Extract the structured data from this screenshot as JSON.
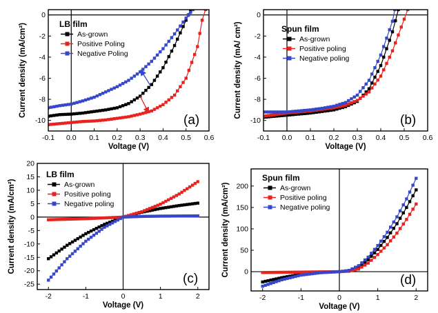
{
  "chart_data": [
    {
      "type": "line",
      "panel_label": "(a)",
      "legend_title": "LB film",
      "xlabel": "Voltage (V)",
      "ylabel": "Current density (mA/cm²)",
      "xlim": [
        -0.1,
        0.6
      ],
      "ylim": [
        -11,
        0.5
      ],
      "x_ticks": [
        -0.1,
        0.0,
        0.1,
        0.2,
        0.3,
        0.4,
        0.5,
        0.6
      ],
      "x_tick_labels": [
        "-0.1",
        "0.0",
        "0.1",
        "0.2",
        "0.3",
        "0.4",
        "0.5",
        "0.6"
      ],
      "y_ticks": [
        -10,
        -8,
        -6,
        -4,
        -2,
        0
      ],
      "y_tick_labels": [
        "-10",
        "-8",
        "-6",
        "-4",
        "-2",
        "0"
      ],
      "zero_lines": true,
      "legend_position": "top-left",
      "series": [
        {
          "name": "As-grown",
          "color": "#000000",
          "marker": "square",
          "points": [
            [
              -0.1,
              -9.6
            ],
            [
              -0.05,
              -9.45
            ],
            [
              0.0,
              -9.4
            ],
            [
              0.05,
              -9.3
            ],
            [
              0.1,
              -9.15
            ],
            [
              0.15,
              -9.0
            ],
            [
              0.2,
              -8.8
            ],
            [
              0.25,
              -8.4
            ],
            [
              0.3,
              -7.7
            ],
            [
              0.35,
              -6.6
            ],
            [
              0.4,
              -5.0
            ],
            [
              0.45,
              -2.9
            ],
            [
              0.5,
              -0.5
            ],
            [
              0.52,
              0.5
            ]
          ]
        },
        {
          "name": "Positive Poling",
          "color": "#e8231f",
          "marker": "square",
          "points": [
            [
              -0.1,
              -10.4
            ],
            [
              -0.05,
              -10.3
            ],
            [
              0.0,
              -10.2
            ],
            [
              0.05,
              -10.1
            ],
            [
              0.1,
              -10.05
            ],
            [
              0.15,
              -9.95
            ],
            [
              0.2,
              -9.8
            ],
            [
              0.25,
              -9.65
            ],
            [
              0.3,
              -9.4
            ],
            [
              0.35,
              -9.1
            ],
            [
              0.4,
              -8.5
            ],
            [
              0.45,
              -7.6
            ],
            [
              0.5,
              -6.0
            ],
            [
              0.55,
              -3.0
            ],
            [
              0.57,
              -0.5
            ],
            [
              0.585,
              0.5
            ]
          ]
        },
        {
          "name": "Negative Poling",
          "color": "#3548c9",
          "marker": "square",
          "points": [
            [
              -0.1,
              -8.8
            ],
            [
              -0.05,
              -8.6
            ],
            [
              0.0,
              -8.45
            ],
            [
              0.05,
              -8.15
            ],
            [
              0.1,
              -7.8
            ],
            [
              0.15,
              -7.3
            ],
            [
              0.2,
              -6.8
            ],
            [
              0.25,
              -6.2
            ],
            [
              0.3,
              -5.4
            ],
            [
              0.35,
              -4.4
            ],
            [
              0.4,
              -3.2
            ],
            [
              0.45,
              -1.8
            ],
            [
              0.5,
              -0.3
            ],
            [
              0.53,
              0.5
            ]
          ]
        }
      ]
    },
    {
      "type": "line",
      "panel_label": "(b)",
      "legend_title": "Spun film",
      "xlabel": "Voltage (V)",
      "ylabel": "Current density (mA/ cm²)",
      "xlim": [
        -0.1,
        0.6
      ],
      "ylim": [
        -11,
        0.5
      ],
      "x_ticks": [
        -0.1,
        0.0,
        0.1,
        0.2,
        0.3,
        0.4,
        0.5,
        0.6
      ],
      "x_tick_labels": [
        "-0.1",
        "0.0",
        "0.1",
        "0.2",
        "0.3",
        "0.4",
        "0.5",
        "0.6"
      ],
      "y_ticks": [
        -10,
        -8,
        -6,
        -4,
        -2,
        0
      ],
      "y_tick_labels": [
        "-10",
        "-8",
        "-6",
        "-4",
        "-2",
        "0"
      ],
      "zero_lines": true,
      "legend_position": "top-left",
      "series": [
        {
          "name": "As-grown",
          "color": "#000000",
          "marker": "square",
          "points": [
            [
              -0.1,
              -9.7
            ],
            [
              0.0,
              -9.5
            ],
            [
              0.05,
              -9.4
            ],
            [
              0.1,
              -9.3
            ],
            [
              0.15,
              -9.15
            ],
            [
              0.2,
              -9.0
            ],
            [
              0.25,
              -8.7
            ],
            [
              0.3,
              -8.2
            ],
            [
              0.35,
              -7.0
            ],
            [
              0.4,
              -4.8
            ],
            [
              0.45,
              -1.6
            ],
            [
              0.475,
              0.5
            ]
          ]
        },
        {
          "name": "Positive poling",
          "color": "#e8231f",
          "marker": "square",
          "points": [
            [
              -0.1,
              -9.6
            ],
            [
              0.0,
              -9.3
            ],
            [
              0.05,
              -9.2
            ],
            [
              0.1,
              -9.1
            ],
            [
              0.15,
              -8.95
            ],
            [
              0.2,
              -8.8
            ],
            [
              0.25,
              -8.55
            ],
            [
              0.3,
              -8.1
            ],
            [
              0.35,
              -7.3
            ],
            [
              0.4,
              -5.8
            ],
            [
              0.45,
              -3.4
            ],
            [
              0.5,
              -0.4
            ],
            [
              0.515,
              0.5
            ]
          ]
        },
        {
          "name": "Negative poling",
          "color": "#3548c9",
          "marker": "square",
          "points": [
            [
              -0.1,
              -9.2
            ],
            [
              0.0,
              -9.2
            ],
            [
              0.05,
              -9.1
            ],
            [
              0.1,
              -9.0
            ],
            [
              0.15,
              -8.85
            ],
            [
              0.2,
              -8.65
            ],
            [
              0.25,
              -8.3
            ],
            [
              0.3,
              -7.6
            ],
            [
              0.35,
              -6.2
            ],
            [
              0.4,
              -3.8
            ],
            [
              0.45,
              -0.6
            ],
            [
              0.46,
              0.5
            ]
          ]
        }
      ]
    },
    {
      "type": "line",
      "panel_label": "(c)",
      "legend_title": "LB film",
      "xlabel": "Voltage (V)",
      "ylabel": "Current density (mA/cm²)",
      "xlim": [
        -2.3,
        2.3
      ],
      "ylim": [
        -27,
        20
      ],
      "x_ticks": [
        -2,
        -1,
        0,
        1,
        2
      ],
      "x_tick_labels": [
        "-2",
        "-1",
        "0",
        "1",
        "2"
      ],
      "y_ticks": [
        -25,
        -20,
        -15,
        -10,
        -5,
        0,
        5,
        10,
        15,
        20
      ],
      "y_tick_labels": [
        "-25",
        "-20",
        "-15",
        "-10",
        "-5",
        "0",
        "5",
        "10",
        "15",
        "20"
      ],
      "zero_lines": true,
      "legend_position": "top-left",
      "series": [
        {
          "name": "As-grown",
          "color": "#000000",
          "marker": "square",
          "points": [
            [
              -2,
              -15.5
            ],
            [
              -1.5,
              -10.5
            ],
            [
              -1,
              -6.2
            ],
            [
              -0.5,
              -2.7
            ],
            [
              0,
              0
            ],
            [
              0.5,
              1.8
            ],
            [
              1,
              3.2
            ],
            [
              1.5,
              4.3
            ],
            [
              2,
              5.2
            ]
          ]
        },
        {
          "name": "Positive poling",
          "color": "#e8231f",
          "marker": "square",
          "points": [
            [
              -2,
              -1.0
            ],
            [
              -1.5,
              -0.8
            ],
            [
              -1,
              -0.6
            ],
            [
              -0.5,
              -0.3
            ],
            [
              0,
              0
            ],
            [
              0.5,
              2.0
            ],
            [
              1,
              4.8
            ],
            [
              1.5,
              8.6
            ],
            [
              2,
              13.2
            ]
          ]
        },
        {
          "name": "Negative poling",
          "color": "#3548c9",
          "marker": "square",
          "points": [
            [
              -2,
              -23.5
            ],
            [
              -1.5,
              -15.5
            ],
            [
              -1,
              -9.0
            ],
            [
              -0.5,
              -3.8
            ],
            [
              0,
              0
            ],
            [
              0.5,
              0.25
            ],
            [
              1,
              0.35
            ],
            [
              1.5,
              0.4
            ],
            [
              2,
              0.45
            ]
          ]
        }
      ]
    },
    {
      "type": "line",
      "panel_label": "(d)",
      "legend_title": "Spun film",
      "xlabel": "Voltage (V)",
      "ylabel": "Current density (mA/cm²)",
      "xlim": [
        -2.3,
        2.3
      ],
      "ylim": [
        -45,
        240
      ],
      "x_ticks": [
        -2,
        -1,
        0,
        1,
        2
      ],
      "x_tick_labels": [
        "-2",
        "-1",
        "0",
        "1",
        "2"
      ],
      "y_ticks": [
        0,
        50,
        100,
        150,
        200
      ],
      "y_tick_labels": [
        "0",
        "50",
        "100",
        "150",
        "200"
      ],
      "zero_lines": true,
      "legend_position": "top-left",
      "series": [
        {
          "name": "As-grown",
          "color": "#000000",
          "marker": "square",
          "points": [
            [
              -2,
              -24
            ],
            [
              -1.5,
              -14
            ],
            [
              -1,
              -6
            ],
            [
              -0.5,
              -2
            ],
            [
              0,
              0
            ],
            [
              0.25,
              2
            ],
            [
              0.5,
              10
            ],
            [
              0.75,
              28
            ],
            [
              1,
              52
            ],
            [
              1.25,
              80
            ],
            [
              1.5,
              112
            ],
            [
              1.75,
              150
            ],
            [
              2,
              191
            ]
          ]
        },
        {
          "name": "Positive poling",
          "color": "#e8231f",
          "marker": "square",
          "points": [
            [
              -2,
              -2
            ],
            [
              -1.5,
              -1.5
            ],
            [
              -1,
              -1
            ],
            [
              -0.5,
              -0.5
            ],
            [
              0,
              0
            ],
            [
              0.25,
              1
            ],
            [
              0.5,
              6
            ],
            [
              0.75,
              20
            ],
            [
              1,
              40
            ],
            [
              1.25,
              63
            ],
            [
              1.5,
              90
            ],
            [
              1.75,
              122
            ],
            [
              2,
              158
            ]
          ]
        },
        {
          "name": "Negative poling",
          "color": "#3548c9",
          "marker": "square",
          "points": [
            [
              -2,
              -34
            ],
            [
              -1.5,
              -19
            ],
            [
              -1,
              -8
            ],
            [
              -0.5,
              -2.5
            ],
            [
              0,
              0
            ],
            [
              0.25,
              3
            ],
            [
              0.5,
              14
            ],
            [
              0.75,
              34
            ],
            [
              1,
              61
            ],
            [
              1.25,
              92
            ],
            [
              1.5,
              128
            ],
            [
              1.75,
              170
            ],
            [
              2,
              218
            ]
          ]
        }
      ]
    }
  ]
}
